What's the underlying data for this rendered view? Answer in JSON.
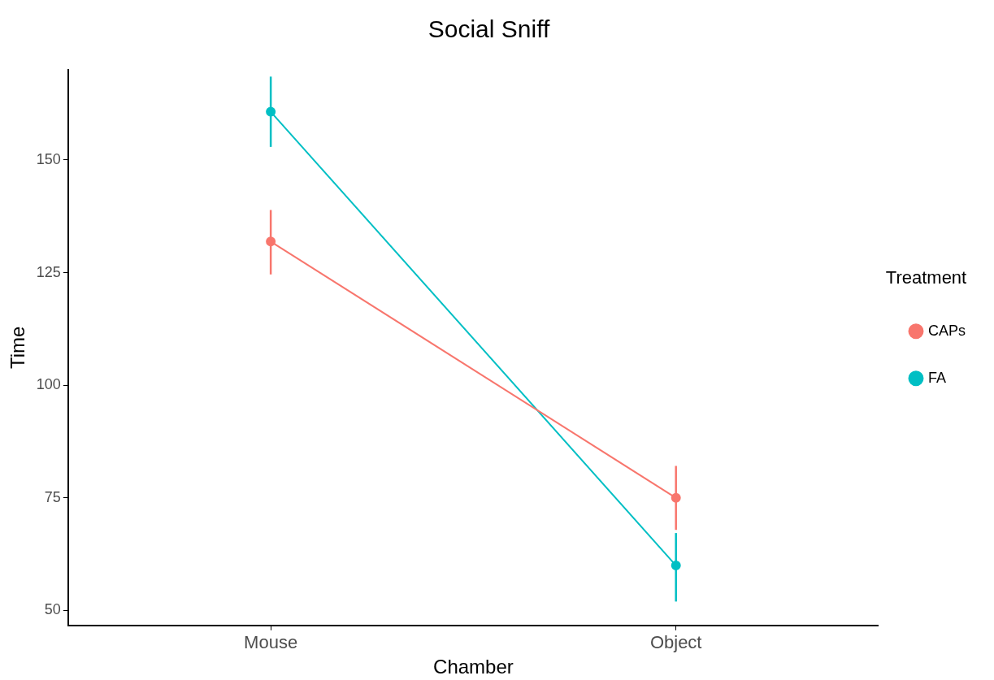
{
  "chart_data": {
    "type": "line",
    "title": "Social Sniff",
    "xlabel": "Chamber",
    "ylabel": "Time",
    "legend_title": "Treatment",
    "categories": [
      "Mouse",
      "Object"
    ],
    "series": [
      {
        "name": "CAPs",
        "color": "#f8766d",
        "values": [
          131.9,
          75.0
        ],
        "errors": [
          [
            124.6,
            138.9
          ],
          [
            67.9,
            82.1
          ]
        ]
      },
      {
        "name": "FA",
        "color": "#00bfc4",
        "values": [
          160.7,
          60.0
        ],
        "errors": [
          [
            152.9,
            168.5
          ],
          [
            52.0,
            67.2
          ]
        ]
      }
    ],
    "ylim": [
      46.7,
      170
    ],
    "yticks": [
      50,
      75,
      100,
      125,
      150
    ],
    "grid": false,
    "legend": "right",
    "marker": "circle",
    "line_style": "solid"
  }
}
